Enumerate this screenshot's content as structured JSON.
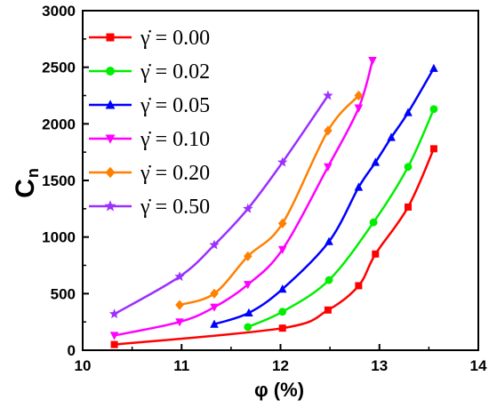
{
  "chart_data": {
    "type": "line",
    "title": "",
    "xlabel": "φ (%)",
    "ylabel": "C",
    "ylabel_subscript": "n",
    "xlim": [
      10,
      14
    ],
    "ylim": [
      0,
      3000
    ],
    "xticks": [
      "10",
      "11",
      "12",
      "13",
      "14"
    ],
    "yticks": [
      "0",
      "500",
      "1000",
      "1500",
      "2000",
      "2500",
      "3000"
    ],
    "legend_position": "top-left",
    "grid": false,
    "series": [
      {
        "name": "γ̇ = 0.00",
        "color": "#ff0000",
        "marker": "square",
        "x": [
          10.32,
          12.02,
          12.48,
          12.79,
          12.96,
          13.29,
          13.55
        ],
        "y": [
          50,
          195,
          355,
          570,
          850,
          1265,
          1780
        ]
      },
      {
        "name": "γ̇ = 0.02",
        "color": "#00ee00",
        "marker": "circle",
        "x": [
          11.67,
          12.02,
          12.49,
          12.94,
          13.29,
          13.55
        ],
        "y": [
          205,
          340,
          620,
          1130,
          1620,
          2130
        ]
      },
      {
        "name": "γ̇ = 0.05",
        "color": "#0000ff",
        "marker": "triangle-up",
        "x": [
          11.33,
          11.68,
          12.02,
          12.49,
          12.79,
          12.96,
          13.12,
          13.29,
          13.55
        ],
        "y": [
          230,
          330,
          540,
          960,
          1440,
          1660,
          1880,
          2100,
          2490
        ]
      },
      {
        "name": "γ̇ = 0.10",
        "color": "#ff00ff",
        "marker": "triangle-down",
        "x": [
          10.32,
          10.98,
          11.33,
          11.67,
          12.02,
          12.48,
          12.79,
          12.93
        ],
        "y": [
          130,
          250,
          380,
          580,
          890,
          1620,
          2140,
          2560
        ]
      },
      {
        "name": "γ̇ = 0.20",
        "color": "#ff8000",
        "marker": "diamond",
        "x": [
          10.98,
          11.33,
          11.67,
          12.02,
          12.48,
          12.79
        ],
        "y": [
          400,
          500,
          830,
          1120,
          1940,
          2250
        ]
      },
      {
        "name": "γ̇ = 0.50",
        "color": "#9b30ff",
        "marker": "star",
        "x": [
          10.32,
          10.98,
          11.33,
          11.67,
          12.02,
          12.48
        ],
        "y": [
          320,
          650,
          930,
          1250,
          1660,
          2250
        ]
      }
    ]
  }
}
